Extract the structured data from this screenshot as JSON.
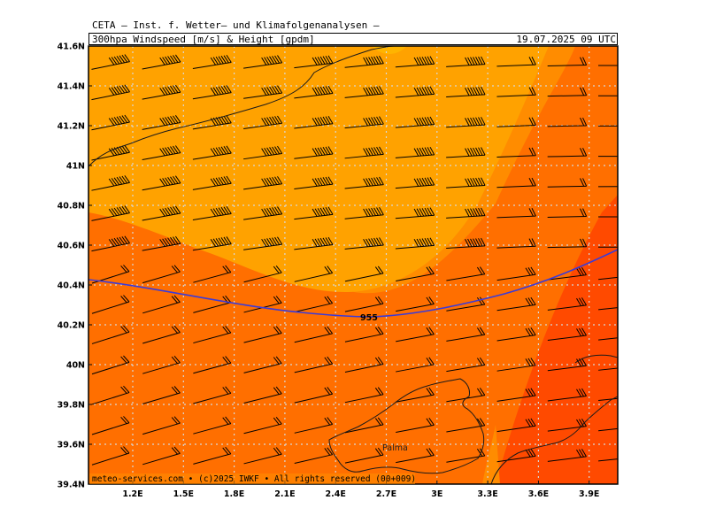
{
  "header": {
    "line1": "CETA – Inst. f. Wetter– und Klimafolgenanalysen –",
    "product": "300hpa Windspeed [m/s] & Height [gpdm]",
    "valid_time": "19.07.2025 09 UTC"
  },
  "footer": {
    "credit": "meteo-services.com • (c)2025 IWKF • All rights reserved (00+009)"
  },
  "map": {
    "lat_ticks": [
      "41.6N",
      "41.4N",
      "41.2N",
      "41N",
      "40.8N",
      "40.6N",
      "40.4N",
      "40.2N",
      "40N",
      "39.8N",
      "39.6N",
      "39.4N"
    ],
    "lon_ticks": [
      "1.2E",
      "1.5E",
      "1.8E",
      "2.1E",
      "2.4E",
      "2.7E",
      "3E",
      "3.3E",
      "3.6E",
      "3.9E"
    ],
    "contour_label": "955",
    "place_label": "Palma",
    "colors": {
      "wind_low": "#ff8c00",
      "wind_mid": "#ff6f00",
      "wind_high": "#ff4a00",
      "wind_core": "#ffa200",
      "wind_peak": "#ffb400",
      "height_contour": "#3b3bd9",
      "coastline": "#1a1a1a",
      "grid": "#c8c8c8"
    }
  }
}
